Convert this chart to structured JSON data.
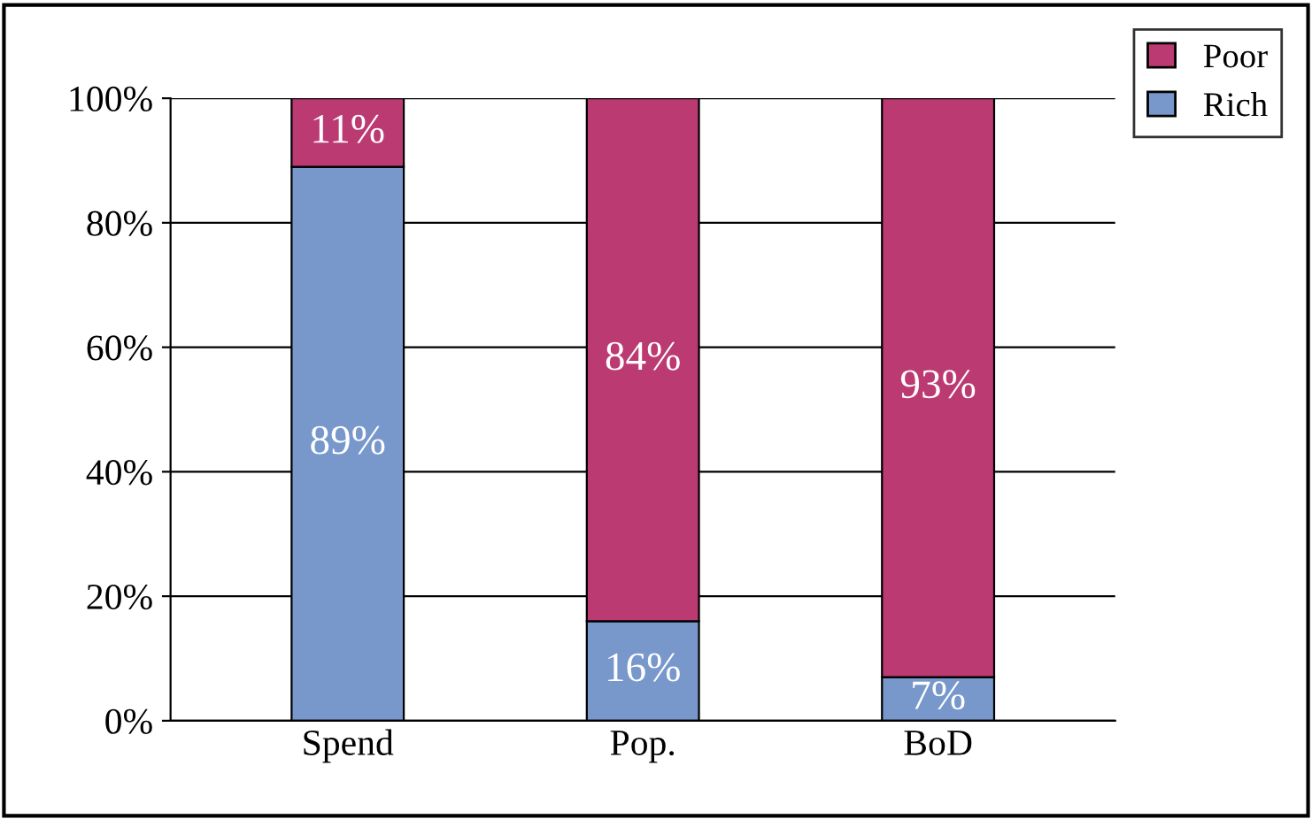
{
  "chart_data": {
    "type": "bar",
    "stacked": true,
    "categories": [
      "Spend",
      "Pop.",
      "BoD"
    ],
    "series": [
      {
        "name": "Rich",
        "color": "#7898cc",
        "values": [
          89,
          16,
          7
        ],
        "value_labels": [
          "89%",
          "16%",
          "7%"
        ]
      },
      {
        "name": "Poor",
        "color": "#bc3a72",
        "values": [
          11,
          84,
          93
        ],
        "value_labels": [
          "11%",
          "84%",
          "93%"
        ]
      }
    ],
    "ylim": [
      0,
      100
    ],
    "yticks": [
      {
        "value": 0,
        "label": "0%"
      },
      {
        "value": 20,
        "label": "20%"
      },
      {
        "value": 40,
        "label": "40%"
      },
      {
        "value": 60,
        "label": "60%"
      },
      {
        "value": 80,
        "label": "80%"
      },
      {
        "value": 100,
        "label": "100%"
      }
    ],
    "grid": "y",
    "legend": "top right"
  }
}
